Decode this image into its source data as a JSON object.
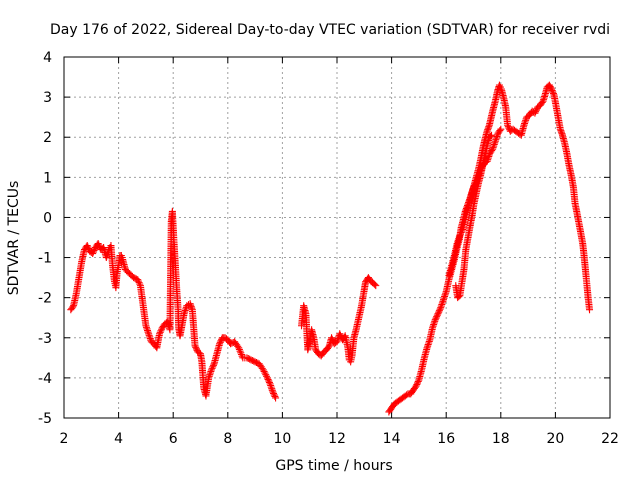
{
  "chart_data": {
    "type": "scatter",
    "title": "Day 176 of 2022, Sidereal Day-to-day VTEC variation (SDTVAR) for receiver rvdi",
    "xlabel": "GPS time / hours",
    "ylabel": "SDTVAR / TECUs",
    "xlim": [
      2,
      22
    ],
    "ylim": [
      -5,
      4
    ],
    "xticks": [
      2,
      4,
      6,
      8,
      10,
      12,
      14,
      16,
      18,
      20,
      22
    ],
    "yticks": [
      -5,
      -4,
      -3,
      -2,
      -1,
      0,
      1,
      2,
      3,
      4
    ],
    "grid": true,
    "marker": "+",
    "series_color": "#ff0000",
    "segments": [
      {
        "name": "segment-1",
        "points": [
          [
            2.25,
            -2.3
          ],
          [
            2.35,
            -2.2
          ],
          [
            2.45,
            -1.9
          ],
          [
            2.55,
            -1.5
          ],
          [
            2.65,
            -1.1
          ],
          [
            2.75,
            -0.8
          ],
          [
            2.85,
            -0.7
          ],
          [
            2.95,
            -0.85
          ],
          [
            3.05,
            -0.9
          ],
          [
            3.15,
            -0.75
          ],
          [
            3.25,
            -0.65
          ],
          [
            3.35,
            -0.8
          ],
          [
            3.45,
            -0.75
          ],
          [
            3.55,
            -1.0
          ],
          [
            3.65,
            -0.8
          ],
          [
            3.72,
            -0.7
          ],
          [
            3.78,
            -1.2
          ],
          [
            3.85,
            -1.6
          ],
          [
            3.9,
            -1.75
          ],
          [
            3.95,
            -1.35
          ],
          [
            4.0,
            -1.2
          ],
          [
            4.05,
            -0.95
          ],
          [
            4.1,
            -0.95
          ],
          [
            4.15,
            -1.05
          ],
          [
            4.25,
            -1.3
          ],
          [
            4.4,
            -1.4
          ],
          [
            4.55,
            -1.5
          ],
          [
            4.7,
            -1.55
          ],
          [
            4.8,
            -1.7
          ],
          [
            4.9,
            -2.2
          ],
          [
            5.0,
            -2.7
          ],
          [
            5.1,
            -2.9
          ],
          [
            5.2,
            -3.1
          ],
          [
            5.3,
            -3.15
          ],
          [
            5.4,
            -3.25
          ],
          [
            5.5,
            -2.9
          ],
          [
            5.6,
            -2.75
          ],
          [
            5.7,
            -2.65
          ],
          [
            5.8,
            -2.6
          ],
          [
            5.88,
            -2.8
          ],
          [
            5.93,
            -0.1
          ],
          [
            5.97,
            0.15
          ],
          [
            6.02,
            -0.5
          ],
          [
            6.08,
            -1.2
          ],
          [
            6.13,
            -1.8
          ],
          [
            6.18,
            -2.3
          ],
          [
            6.2,
            -2.75
          ],
          [
            6.25,
            -2.95
          ],
          [
            6.32,
            -2.7
          ],
          [
            6.4,
            -2.4
          ],
          [
            6.5,
            -2.2
          ],
          [
            6.62,
            -2.15
          ],
          [
            6.7,
            -2.3
          ],
          [
            6.8,
            -3.2
          ],
          [
            6.9,
            -3.35
          ],
          [
            7.0,
            -3.4
          ],
          [
            7.05,
            -3.6
          ],
          [
            7.12,
            -4.25
          ],
          [
            7.2,
            -4.45
          ],
          [
            7.3,
            -4.0
          ],
          [
            7.4,
            -3.8
          ],
          [
            7.5,
            -3.65
          ],
          [
            7.6,
            -3.4
          ],
          [
            7.7,
            -3.15
          ],
          [
            7.8,
            -3.0
          ],
          [
            7.9,
            -3.0
          ],
          [
            8.0,
            -3.05
          ],
          [
            8.1,
            -3.15
          ],
          [
            8.25,
            -3.1
          ],
          [
            8.4,
            -3.25
          ],
          [
            8.55,
            -3.5
          ],
          [
            8.7,
            -3.5
          ],
          [
            8.85,
            -3.55
          ],
          [
            9.0,
            -3.6
          ],
          [
            9.15,
            -3.65
          ],
          [
            9.3,
            -3.8
          ],
          [
            9.45,
            -4.0
          ],
          [
            9.55,
            -4.15
          ],
          [
            9.65,
            -4.35
          ],
          [
            9.75,
            -4.5
          ]
        ]
      },
      {
        "name": "segment-2",
        "points": [
          [
            10.7,
            -2.7
          ],
          [
            10.78,
            -2.2
          ],
          [
            10.86,
            -2.4
          ],
          [
            10.93,
            -3.3
          ],
          [
            11.0,
            -3.1
          ],
          [
            11.07,
            -2.8
          ],
          [
            11.15,
            -3.0
          ],
          [
            11.22,
            -3.3
          ],
          [
            11.32,
            -3.4
          ],
          [
            11.42,
            -3.45
          ],
          [
            11.52,
            -3.35
          ],
          [
            11.62,
            -3.3
          ],
          [
            11.72,
            -3.2
          ],
          [
            11.8,
            -3.0
          ],
          [
            11.9,
            -3.15
          ],
          [
            12.0,
            -3.1
          ],
          [
            12.1,
            -2.9
          ],
          [
            12.2,
            -3.05
          ],
          [
            12.3,
            -2.95
          ],
          [
            12.4,
            -3.25
          ],
          [
            12.45,
            -3.55
          ],
          [
            12.5,
            -3.6
          ],
          [
            12.55,
            -3.45
          ],
          [
            12.62,
            -3.0
          ],
          [
            12.7,
            -2.8
          ],
          [
            12.8,
            -2.5
          ],
          [
            12.9,
            -2.2
          ],
          [
            13.0,
            -1.8
          ],
          [
            13.05,
            -1.6
          ],
          [
            13.15,
            -1.5
          ],
          [
            13.25,
            -1.6
          ],
          [
            13.35,
            -1.65
          ],
          [
            13.42,
            -1.7
          ]
        ]
      },
      {
        "name": "segment-3",
        "points": [
          [
            13.9,
            -4.85
          ],
          [
            14.0,
            -4.75
          ],
          [
            14.1,
            -4.65
          ],
          [
            14.2,
            -4.6
          ],
          [
            14.3,
            -4.55
          ],
          [
            14.4,
            -4.5
          ],
          [
            14.5,
            -4.45
          ],
          [
            14.6,
            -4.4
          ],
          [
            14.7,
            -4.4
          ],
          [
            14.8,
            -4.3
          ],
          [
            14.9,
            -4.2
          ],
          [
            15.0,
            -4.05
          ],
          [
            15.1,
            -3.8
          ],
          [
            15.2,
            -3.5
          ],
          [
            15.3,
            -3.25
          ],
          [
            15.4,
            -3.05
          ],
          [
            15.5,
            -2.75
          ],
          [
            15.6,
            -2.55
          ],
          [
            15.7,
            -2.4
          ],
          [
            15.8,
            -2.25
          ],
          [
            15.9,
            -2.05
          ],
          [
            16.0,
            -1.85
          ],
          [
            16.1,
            -1.55
          ],
          [
            16.2,
            -1.3
          ],
          [
            16.3,
            -1.05
          ],
          [
            16.4,
            -0.75
          ],
          [
            16.48,
            -0.55
          ],
          [
            16.55,
            -0.25
          ],
          [
            16.63,
            -0.05
          ],
          [
            16.7,
            0.15
          ],
          [
            16.78,
            0.3
          ],
          [
            16.86,
            0.45
          ],
          [
            16.95,
            0.65
          ],
          [
            17.02,
            0.8
          ],
          [
            17.1,
            1.0
          ],
          [
            17.2,
            1.25
          ],
          [
            17.28,
            1.5
          ],
          [
            17.35,
            1.75
          ],
          [
            17.42,
            1.95
          ],
          [
            17.5,
            2.15
          ],
          [
            17.58,
            2.3
          ],
          [
            17.65,
            2.5
          ],
          [
            17.72,
            2.7
          ],
          [
            17.8,
            2.9
          ],
          [
            17.88,
            3.15
          ],
          [
            17.95,
            3.3
          ],
          [
            18.02,
            3.2
          ],
          [
            18.1,
            3.0
          ],
          [
            18.18,
            2.75
          ],
          [
            18.25,
            2.3
          ],
          [
            18.35,
            2.15
          ],
          [
            18.45,
            2.2
          ],
          [
            18.55,
            2.15
          ],
          [
            18.65,
            2.1
          ],
          [
            18.75,
            2.05
          ],
          [
            18.85,
            2.3
          ],
          [
            18.95,
            2.5
          ],
          [
            19.05,
            2.55
          ],
          [
            19.15,
            2.65
          ],
          [
            19.25,
            2.6
          ],
          [
            19.35,
            2.75
          ],
          [
            19.45,
            2.8
          ],
          [
            19.55,
            2.9
          ],
          [
            19.62,
            3.05
          ],
          [
            19.7,
            3.25
          ],
          [
            19.78,
            3.3
          ],
          [
            19.86,
            3.2
          ],
          [
            19.95,
            3.05
          ],
          [
            20.02,
            2.8
          ],
          [
            20.1,
            2.5
          ],
          [
            20.18,
            2.2
          ],
          [
            20.26,
            2.05
          ],
          [
            20.34,
            1.85
          ],
          [
            20.42,
            1.6
          ],
          [
            20.5,
            1.3
          ],
          [
            20.58,
            1.05
          ],
          [
            20.66,
            0.75
          ],
          [
            20.72,
            0.35
          ],
          [
            20.78,
            0.15
          ],
          [
            20.85,
            -0.1
          ],
          [
            20.92,
            -0.35
          ],
          [
            21.0,
            -0.65
          ],
          [
            21.05,
            -0.95
          ],
          [
            21.1,
            -1.3
          ],
          [
            21.15,
            -1.65
          ],
          [
            21.2,
            -2.0
          ],
          [
            21.25,
            -2.3
          ]
        ]
      },
      {
        "name": "segment-4",
        "points": [
          [
            16.35,
            -1.7
          ],
          [
            16.42,
            -2.0
          ],
          [
            16.5,
            -1.95
          ],
          [
            16.58,
            -1.6
          ],
          [
            16.65,
            -1.3
          ],
          [
            16.72,
            -0.8
          ],
          [
            16.8,
            -0.5
          ],
          [
            16.88,
            -0.2
          ],
          [
            16.95,
            0.05
          ],
          [
            17.02,
            0.35
          ],
          [
            17.1,
            0.6
          ],
          [
            17.18,
            0.85
          ],
          [
            17.26,
            1.05
          ],
          [
            17.34,
            1.3
          ],
          [
            17.42,
            1.55
          ],
          [
            17.5,
            1.8
          ],
          [
            17.58,
            2.0
          ],
          [
            17.66,
            2.05
          ]
        ]
      },
      {
        "name": "segment-5",
        "points": [
          [
            16.1,
            -1.45
          ],
          [
            16.2,
            -1.2
          ],
          [
            16.3,
            -0.95
          ],
          [
            16.4,
            -0.65
          ],
          [
            16.5,
            -0.45
          ],
          [
            16.6,
            -0.3
          ],
          [
            16.7,
            -0.05
          ],
          [
            16.8,
            0.25
          ],
          [
            16.9,
            0.5
          ],
          [
            17.0,
            0.75
          ],
          [
            17.1,
            0.85
          ],
          [
            17.2,
            1.05
          ],
          [
            17.3,
            1.25
          ],
          [
            17.4,
            1.35
          ],
          [
            17.5,
            1.4
          ],
          [
            17.6,
            1.6
          ],
          [
            17.7,
            1.7
          ],
          [
            17.8,
            1.9
          ],
          [
            17.9,
            2.1
          ],
          [
            18.0,
            2.2
          ]
        ]
      }
    ]
  }
}
